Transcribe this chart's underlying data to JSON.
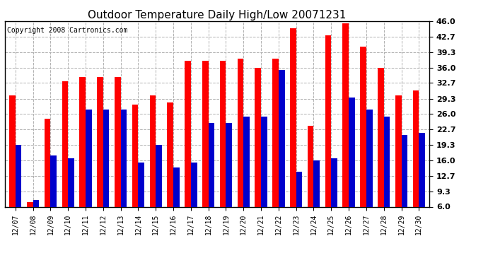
{
  "title": "Outdoor Temperature Daily High/Low 20071231",
  "copyright": "Copyright 2008 Cartronics.com",
  "dates": [
    "12/07",
    "12/08",
    "12/09",
    "12/10",
    "12/11",
    "12/12",
    "12/13",
    "12/14",
    "12/15",
    "12/16",
    "12/17",
    "12/18",
    "12/19",
    "12/20",
    "12/21",
    "12/22",
    "12/23",
    "12/24",
    "12/25",
    "12/26",
    "12/27",
    "12/28",
    "12/29",
    "12/30"
  ],
  "highs": [
    30.0,
    7.0,
    25.0,
    33.0,
    34.0,
    34.0,
    34.0,
    28.0,
    30.0,
    28.5,
    37.5,
    37.5,
    37.5,
    38.0,
    36.0,
    38.0,
    44.5,
    23.5,
    43.0,
    45.5,
    40.5,
    36.0,
    30.0,
    31.0
  ],
  "lows": [
    19.3,
    7.5,
    17.0,
    16.5,
    27.0,
    27.0,
    27.0,
    15.5,
    19.3,
    14.5,
    15.5,
    24.0,
    24.0,
    25.5,
    25.5,
    35.5,
    13.5,
    16.0,
    16.5,
    29.5,
    27.0,
    25.5,
    21.5,
    22.0
  ],
  "yticks": [
    6.0,
    9.3,
    12.7,
    16.0,
    19.3,
    22.7,
    26.0,
    29.3,
    32.7,
    36.0,
    39.3,
    42.7,
    46.0
  ],
  "ymin": 6.0,
  "ymax": 46.0,
  "bar_width": 0.35,
  "high_color": "#ff0000",
  "low_color": "#0000cc",
  "bg_color": "#ffffff",
  "grid_color": "#b0b0b0",
  "title_fontsize": 11,
  "copyright_fontsize": 7,
  "tick_fontsize": 7,
  "ytick_fontsize": 8
}
